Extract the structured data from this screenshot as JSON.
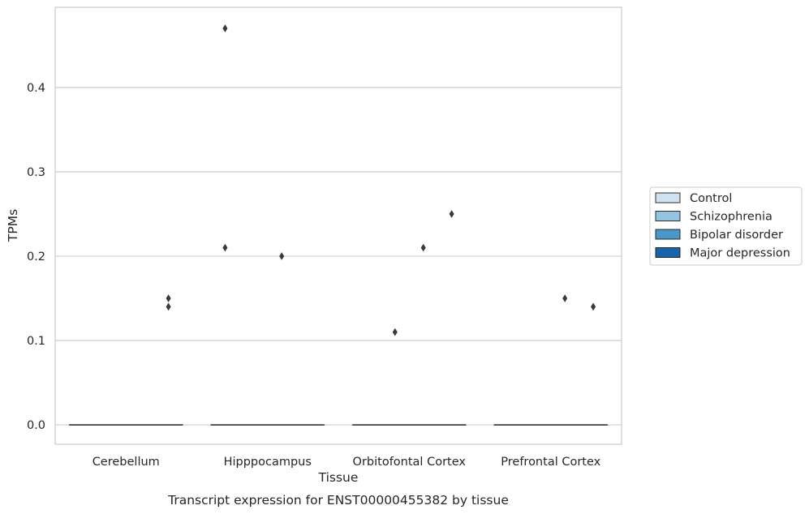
{
  "chart_data": {
    "type": "box",
    "xlabel": "Tissue",
    "ylabel": "TPMs",
    "caption": "Transcript expression for ENST00000455382 by tissue",
    "categories": [
      "Cerebellum",
      "Hipppocampus",
      "Orbitofontal Cortex",
      "Prefrontal Cortex"
    ],
    "ylim": [
      -0.023,
      0.495
    ],
    "yticks": [
      0.0,
      0.1,
      0.2,
      0.3,
      0.4
    ],
    "ytick_labels": [
      "0.0",
      "0.1",
      "0.2",
      "0.3",
      "0.4"
    ],
    "grid": "horizontal",
    "legend_position": "right",
    "series": [
      {
        "name": "Control",
        "color": "#d0e1f2",
        "boxes": [
          {
            "category": "Cerebellum",
            "q1": 0,
            "median": 0,
            "q3": 0,
            "whisker_low": 0,
            "whisker_high": 0,
            "outliers": []
          },
          {
            "category": "Hipppocampus",
            "q1": 0,
            "median": 0,
            "q3": 0,
            "whisker_low": 0,
            "whisker_high": 0,
            "outliers": [
              0.47,
              0.21
            ]
          },
          {
            "category": "Orbitofontal Cortex",
            "q1": 0,
            "median": 0,
            "q3": 0,
            "whisker_low": 0,
            "whisker_high": 0,
            "outliers": []
          },
          {
            "category": "Prefrontal Cortex",
            "q1": 0,
            "median": 0,
            "q3": 0,
            "whisker_low": 0,
            "whisker_high": 0,
            "outliers": []
          }
        ]
      },
      {
        "name": "Schizophrenia",
        "color": "#94c4df",
        "boxes": [
          {
            "category": "Cerebellum",
            "q1": 0,
            "median": 0,
            "q3": 0,
            "whisker_low": 0,
            "whisker_high": 0,
            "outliers": []
          },
          {
            "category": "Hipppocampus",
            "q1": 0,
            "median": 0,
            "q3": 0,
            "whisker_low": 0,
            "whisker_high": 0,
            "outliers": []
          },
          {
            "category": "Orbitofontal Cortex",
            "q1": 0,
            "median": 0,
            "q3": 0,
            "whisker_low": 0,
            "whisker_high": 0,
            "outliers": [
              0.11
            ]
          },
          {
            "category": "Prefrontal Cortex",
            "q1": 0,
            "median": 0,
            "q3": 0,
            "whisker_low": 0,
            "whisker_high": 0,
            "outliers": []
          }
        ]
      },
      {
        "name": "Bipolar disorder",
        "color": "#4a98c9",
        "boxes": [
          {
            "category": "Cerebellum",
            "q1": 0,
            "median": 0,
            "q3": 0,
            "whisker_low": 0,
            "whisker_high": 0,
            "outliers": []
          },
          {
            "category": "Hipppocampus",
            "q1": 0,
            "median": 0,
            "q3": 0,
            "whisker_low": 0,
            "whisker_high": 0,
            "outliers": [
              0.2
            ]
          },
          {
            "category": "Orbitofontal Cortex",
            "q1": 0,
            "median": 0,
            "q3": 0,
            "whisker_low": 0,
            "whisker_high": 0,
            "outliers": [
              0.21
            ]
          },
          {
            "category": "Prefrontal Cortex",
            "q1": 0,
            "median": 0,
            "q3": 0,
            "whisker_low": 0,
            "whisker_high": 0,
            "outliers": [
              0.15
            ]
          }
        ]
      },
      {
        "name": "Major depression",
        "color": "#1764ab",
        "boxes": [
          {
            "category": "Cerebellum",
            "q1": 0,
            "median": 0,
            "q3": 0,
            "whisker_low": 0,
            "whisker_high": 0,
            "outliers": [
              0.15,
              0.14
            ]
          },
          {
            "category": "Hipppocampus",
            "q1": 0,
            "median": 0,
            "q3": 0,
            "whisker_low": 0,
            "whisker_high": 0,
            "outliers": []
          },
          {
            "category": "Orbitofontal Cortex",
            "q1": 0,
            "median": 0,
            "q3": 0,
            "whisker_low": 0,
            "whisker_high": 0,
            "outliers": [
              0.25
            ]
          },
          {
            "category": "Prefrontal Cortex",
            "q1": 0,
            "median": 0,
            "q3": 0,
            "whisker_low": 0,
            "whisker_high": 0,
            "outliers": [
              0.14
            ]
          }
        ]
      }
    ]
  },
  "colors": {
    "axes_edge": "#cccccc",
    "grid": "#cccccc",
    "box_line": "#3a3a3a",
    "text": "#262626"
  }
}
